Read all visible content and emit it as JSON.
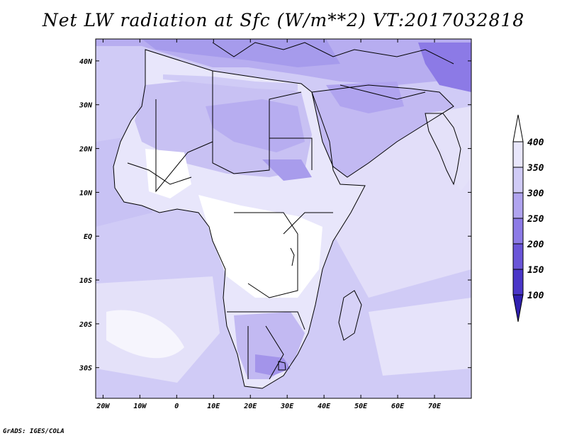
{
  "title": "Net LW radiation at Sfc (W/m**2) VT:2017032818",
  "footer": "GrADS: IGES/COLA",
  "map": {
    "lon_range": [
      -22,
      80
    ],
    "lat_range": [
      -37,
      45
    ],
    "lon_ticks": [
      {
        "value": -20,
        "label": "20W"
      },
      {
        "value": -10,
        "label": "10W"
      },
      {
        "value": 0,
        "label": "0"
      },
      {
        "value": 10,
        "label": "10E"
      },
      {
        "value": 20,
        "label": "20E"
      },
      {
        "value": 30,
        "label": "30E"
      },
      {
        "value": 40,
        "label": "40E"
      },
      {
        "value": 50,
        "label": "50E"
      },
      {
        "value": 60,
        "label": "60E"
      },
      {
        "value": 70,
        "label": "70E"
      }
    ],
    "lat_ticks": [
      {
        "value": 40,
        "label": "40N"
      },
      {
        "value": 30,
        "label": "30N"
      },
      {
        "value": 20,
        "label": "20N"
      },
      {
        "value": 10,
        "label": "10N"
      },
      {
        "value": 0,
        "label": "EQ"
      },
      {
        "value": -10,
        "label": "10S"
      },
      {
        "value": -20,
        "label": "20S"
      },
      {
        "value": -30,
        "label": "30S"
      }
    ]
  },
  "colorbar": {
    "levels": [
      "100",
      "150",
      "200",
      "250",
      "300",
      "350",
      "400"
    ],
    "colors": [
      "#3020b0",
      "#4a36c8",
      "#6a55d8",
      "#8c7ae6",
      "#b0a4ef",
      "#d0cbf6",
      "#e8e6fb",
      "#ffffff"
    ]
  }
}
